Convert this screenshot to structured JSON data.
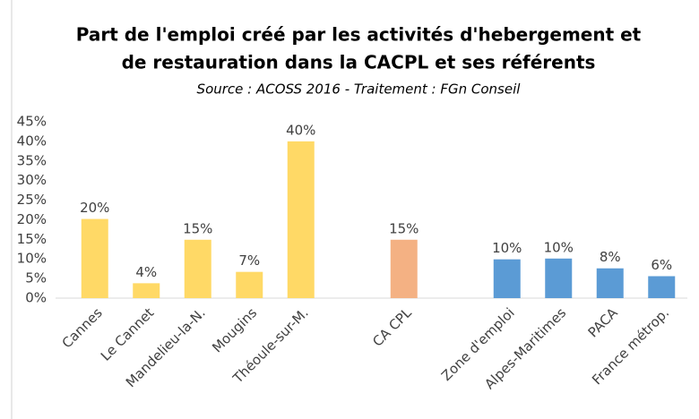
{
  "chart_data": {
    "type": "bar",
    "title": [
      "Part de l'emploi créé par les activités d'hebergement et",
      "de restauration dans la CACPL et ses référents"
    ],
    "subtitle": "Source : ACOSS 2016 - Traitement : FGn Conseil",
    "categories": [
      "Cannes",
      "Le Cannet",
      "Mandelieu-la-N.",
      "Mougins",
      "Théoule-sur-M.",
      null,
      "CA CPL",
      null,
      "Zone d'emploi",
      "Alpes-Maritimes",
      "PACA",
      "France métrop."
    ],
    "values": [
      20.2,
      3.8,
      14.9,
      6.7,
      40,
      null,
      14.9,
      null,
      9.9,
      10.1,
      7.6,
      5.6
    ],
    "value_labels": [
      "20%",
      "4%",
      "15%",
      "7%",
      "40%",
      null,
      "15%",
      null,
      "10%",
      "10%",
      "8%",
      "6%"
    ],
    "colors": [
      "#ffd966",
      "#ffd966",
      "#ffd966",
      "#ffd966",
      "#ffd966",
      null,
      "#f4b183",
      null,
      "#5b9bd5",
      "#5b9bd5",
      "#5b9bd5",
      "#5b9bd5"
    ],
    "ylim": [
      0,
      45
    ],
    "yticks": [
      {
        "value": 0,
        "label": "0%"
      },
      {
        "value": 5,
        "label": "5%"
      },
      {
        "value": 10,
        "label": "10%"
      },
      {
        "value": 15,
        "label": "15%"
      },
      {
        "value": 20,
        "label": "20%"
      },
      {
        "value": 25,
        "label": "25%"
      },
      {
        "value": 30,
        "label": "30%"
      },
      {
        "value": 35,
        "label": "35%"
      },
      {
        "value": 40,
        "label": "40%"
      },
      {
        "value": 45,
        "label": "45%"
      }
    ],
    "grid": false
  }
}
